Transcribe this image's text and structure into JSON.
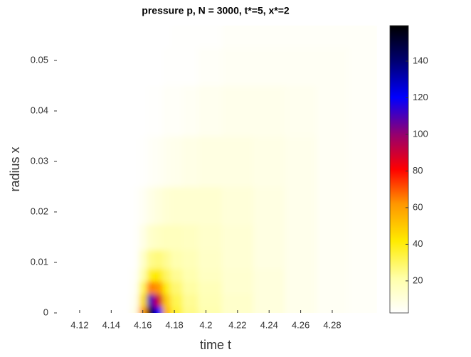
{
  "chart_data": {
    "type": "heatmap",
    "title": "pressure p, N = 3000, t*=5, x*=2",
    "x_label": "time t",
    "y_label": "radius x",
    "x": [
      4.155,
      4.16,
      4.165,
      4.17,
      4.175,
      4.18,
      4.19,
      4.2,
      4.22,
      4.24,
      4.26,
      4.28,
      4.3
    ],
    "y": [
      0,
      0.0025,
      0.005,
      0.0075,
      0.01,
      0.015,
      0.02,
      0.03,
      0.04,
      0.05,
      0.055
    ],
    "z": [
      [
        8,
        60,
        159,
        120,
        55,
        35,
        25,
        20,
        14,
        10,
        7,
        5,
        4
      ],
      [
        6,
        45,
        110,
        90,
        50,
        32,
        24,
        19,
        14,
        10,
        7,
        5,
        4
      ],
      [
        5,
        30,
        65,
        62,
        40,
        28,
        22,
        18,
        13,
        10,
        7,
        5,
        4
      ],
      [
        4,
        20,
        40,
        42,
        30,
        24,
        20,
        16,
        13,
        10,
        7,
        5,
        4
      ],
      [
        3,
        14,
        25,
        27,
        24,
        20,
        18,
        15,
        12,
        9,
        7,
        5,
        4
      ],
      [
        3,
        8,
        14,
        16,
        17,
        17,
        16,
        14,
        12,
        9,
        7,
        5,
        4
      ],
      [
        3,
        5,
        8,
        10,
        12,
        13,
        13,
        13,
        11,
        9,
        7,
        5,
        4
      ],
      [
        2.5,
        3,
        4,
        5,
        6,
        7,
        8,
        9,
        9,
        8,
        7,
        5,
        4
      ],
      [
        2.5,
        2.5,
        3,
        3,
        4,
        4,
        5,
        6,
        7,
        7,
        6,
        5,
        4
      ],
      [
        2.5,
        2.5,
        2.5,
        2.5,
        3,
        3,
        3,
        4,
        5,
        5,
        5,
        5,
        4
      ],
      [
        2.5,
        2.5,
        2.5,
        2.5,
        2.5,
        3,
        3,
        3,
        4,
        4,
        4,
        4,
        4
      ]
    ],
    "xlim": [
      4.1038,
      4.3084
    ],
    "ylim": [
      0,
      0.0569
    ],
    "xticks": [
      4.12,
      4.14,
      4.16,
      4.18,
      4.2,
      4.22,
      4.24,
      4.26,
      4.28
    ],
    "yticks": [
      0,
      0.01,
      0.02,
      0.03,
      0.04,
      0.05
    ],
    "clim": [
      2.5,
      159.4
    ],
    "cticks": [
      20,
      40,
      60,
      80,
      100,
      120,
      140
    ]
  }
}
